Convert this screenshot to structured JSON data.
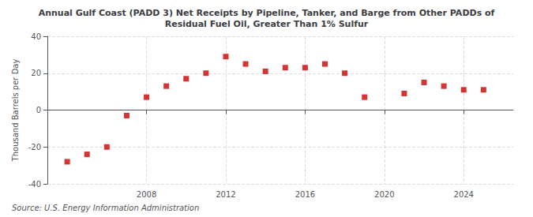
{
  "chart_data": {
    "type": "scatter",
    "title": "Annual Gulf Coast (PADD 3) Net Receipts by Pipeline, Tanker, and Barge from Other PADDs of\nResidual Fuel Oil, Greater Than 1% Sulfur",
    "ylabel": "Thousand Barrels per Day",
    "source": "Source: U.S. Energy Information Administration",
    "x": [
      2004,
      2005,
      2006,
      2007,
      2008,
      2009,
      2010,
      2011,
      2012,
      2013,
      2014,
      2015,
      2016,
      2017,
      2018,
      2019,
      2021,
      2022,
      2023,
      2024,
      2025
    ],
    "values": [
      -28,
      -24,
      -20,
      -3,
      7,
      13,
      17,
      20,
      29,
      25,
      21,
      23,
      23,
      25,
      20,
      7,
      9,
      15,
      13,
      11,
      11
    ],
    "color": "#CC0000",
    "marker": "square",
    "xlim": [
      2003,
      2026.5
    ],
    "xticks": [
      2008,
      2012,
      2016,
      2020,
      2024
    ],
    "ylim": [
      -40,
      40
    ],
    "yticks": [
      -40,
      -20,
      0,
      20,
      40
    ],
    "grid": true
  }
}
